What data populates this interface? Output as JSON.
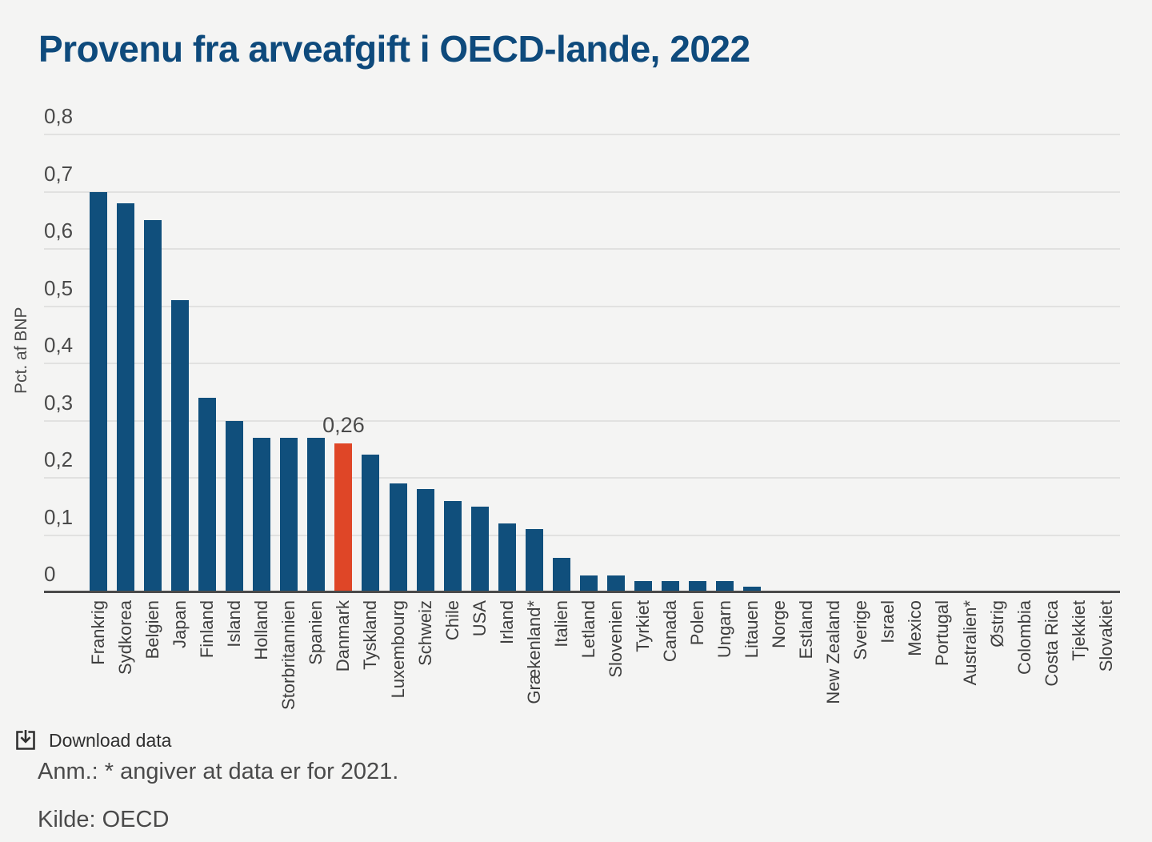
{
  "page": {
    "title": "Provenu fra arveafgift i OECD-lande, 2022"
  },
  "chart_data": {
    "type": "bar",
    "title": "Provenu fra arveafgift i OECD-lande, 2022",
    "xlabel": "",
    "ylabel": "Pct. af BNP",
    "ylim": [
      0,
      0.8
    ],
    "yticks": [
      "0",
      "0,1",
      "0,2",
      "0,3",
      "0,4",
      "0,5",
      "0,6",
      "0,7",
      "0,8"
    ],
    "grid": true,
    "legend": "none",
    "categories": [
      "Frankrig",
      "Sydkorea",
      "Belgien",
      "Japan",
      "Finland",
      "Island",
      "Holland",
      "Storbritannien",
      "Spanien",
      "Danmark",
      "Tyskland",
      "Luxembourg",
      "Schweiz",
      "Chile",
      "USA",
      "Irland",
      "Grækenland*",
      "Italien",
      "Letland",
      "Slovenien",
      "Tyrkiet",
      "Canada",
      "Polen",
      "Ungarn",
      "Litauen",
      "Norge",
      "Estland",
      "New Zealand",
      "Sverige",
      "Israel",
      "Mexico",
      "Portugal",
      "Australien*",
      "Østrig",
      "Colombia",
      "Costa Rica",
      "Tjekkiet",
      "Slovakiet"
    ],
    "values": [
      0.7,
      0.68,
      0.65,
      0.51,
      0.34,
      0.3,
      0.27,
      0.27,
      0.27,
      0.26,
      0.24,
      0.19,
      0.18,
      0.16,
      0.15,
      0.12,
      0.11,
      0.06,
      0.03,
      0.03,
      0.02,
      0.02,
      0.02,
      0.02,
      0.01,
      0,
      0,
      0,
      0,
      0,
      0,
      0,
      0,
      0,
      0,
      0,
      0,
      0
    ],
    "highlight": {
      "category": "Danmark",
      "index": 9,
      "annotation": "0,26",
      "color": "#df4627"
    },
    "bar_color": "#104f7c"
  },
  "footer": {
    "download_label": "Download data",
    "note": "Anm.: * angiver at data er for 2021.",
    "source": "Kilde: OECD"
  },
  "colors": {
    "background": "#f4f4f3",
    "title": "#0e4a7c",
    "bar": "#104f7c",
    "highlight": "#df4627",
    "gridline": "#e1e1e0",
    "axis_line": "#4a4a4a",
    "axis_text": "#4a4a4a",
    "category_text": "#3e3e3e"
  }
}
